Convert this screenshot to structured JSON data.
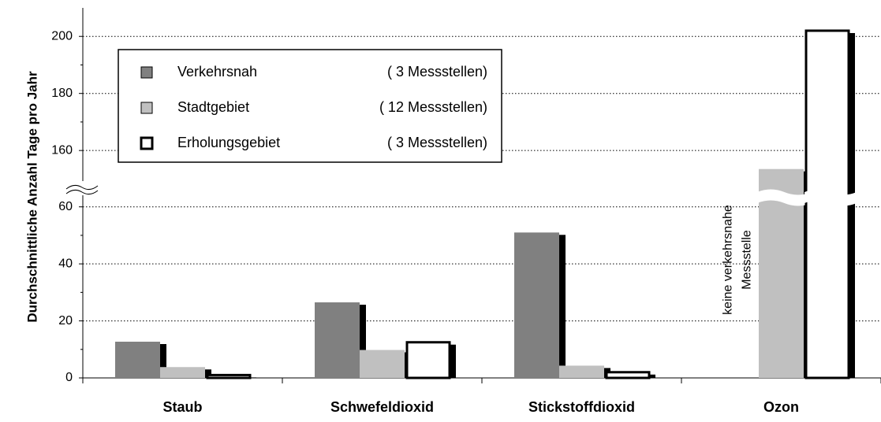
{
  "chart_data": {
    "type": "bar",
    "y_label": "Durchschnittliche Anzahl Tage pro Jahr",
    "categories": [
      "Staub",
      "Schwefeldioxid",
      "Stickstoffdioxid",
      "Ozon"
    ],
    "series": [
      {
        "name": "Verkehrsnah",
        "note": "( 3 Messstellen)",
        "color": "#808080",
        "values": [
          12.7,
          26.5,
          51,
          null
        ]
      },
      {
        "name": "Stadtgebiet",
        "note": "( 12 Messstellen)",
        "color": "#c0c0c0",
        "values": [
          3.8,
          9.8,
          4.3,
          153.5
        ]
      },
      {
        "name": "Erholungsgebiet",
        "note": "( 3 Messstellen)",
        "color": "#ffffff",
        "values": [
          1.0,
          12.5,
          2.0,
          202
        ]
      }
    ],
    "ylim_lower": [
      0,
      66
    ],
    "ylim_upper": [
      149,
      210
    ],
    "yticks": [
      0,
      20,
      40,
      60,
      160,
      180,
      200
    ],
    "grid": true,
    "annotation": [
      "keine verkehrsnahe",
      "Messstelle"
    ]
  }
}
